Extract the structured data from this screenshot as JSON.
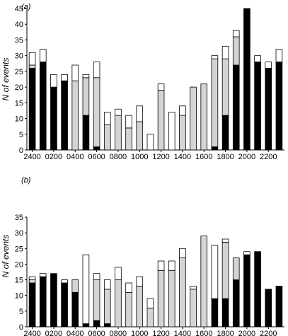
{
  "chart_data": [
    {
      "type": "bar",
      "stacked": true,
      "panel_label": "(a)",
      "ylabel": "N of events",
      "ylim": [
        0,
        45
      ],
      "yticks": [
        0,
        5,
        10,
        15,
        20,
        25,
        30,
        35,
        40,
        45
      ],
      "xtick_labels": [
        "2400",
        "0200",
        "0400",
        "0600",
        "0800",
        "1000",
        "1200",
        "1400",
        "1600",
        "1800",
        "2000",
        "2200"
      ],
      "colors": {
        "black": "#000000",
        "gray": "#d4d4d4",
        "white": "#ffffff"
      },
      "segments_order": [
        "black",
        "gray",
        "white"
      ],
      "bars": [
        {
          "black": 26,
          "gray": 1,
          "white": 4
        },
        {
          "black": 28,
          "gray": 0,
          "white": 4
        },
        {
          "black": 20,
          "gray": 0,
          "white": 4
        },
        {
          "black": 22,
          "gray": 0,
          "white": 2
        },
        {
          "black": 0,
          "gray": 22,
          "white": 5
        },
        {
          "black": 11,
          "gray": 12,
          "white": 1
        },
        {
          "black": 1,
          "gray": 22,
          "white": 5
        },
        {
          "black": 0,
          "gray": 8,
          "white": 4
        },
        {
          "black": 0,
          "gray": 11,
          "white": 2
        },
        {
          "black": 0,
          "gray": 7,
          "white": 4
        },
        {
          "black": 0,
          "gray": 9,
          "white": 5
        },
        {
          "black": 0,
          "gray": 0,
          "white": 5
        },
        {
          "black": 0,
          "gray": 19,
          "white": 2
        },
        {
          "black": 0,
          "gray": 0,
          "white": 12
        },
        {
          "black": 0,
          "gray": 11,
          "white": 3
        },
        {
          "black": 0,
          "gray": 20,
          "white": 0
        },
        {
          "black": 0,
          "gray": 21,
          "white": 0
        },
        {
          "black": 1,
          "gray": 28,
          "white": 1
        },
        {
          "black": 11,
          "gray": 18,
          "white": 4
        },
        {
          "black": 27,
          "gray": 9,
          "white": 2
        },
        {
          "black": 45,
          "gray": 0,
          "white": 0
        },
        {
          "black": 28,
          "gray": 0,
          "white": 2
        },
        {
          "black": 26,
          "gray": 0,
          "white": 2
        },
        {
          "black": 28,
          "gray": 0,
          "white": 4
        }
      ]
    },
    {
      "type": "bar",
      "stacked": true,
      "panel_label": "(b)",
      "ylabel": "N of events",
      "ylim": [
        0,
        35
      ],
      "yticks": [
        0,
        5,
        10,
        15,
        20,
        25,
        30,
        35
      ],
      "xtick_labels": [
        "2400",
        "0200",
        "0400",
        "0600",
        "0800",
        "1000",
        "1200",
        "1400",
        "1600",
        "1800",
        "2000",
        "2200"
      ],
      "colors": {
        "black": "#000000",
        "gray": "#d4d4d4",
        "white": "#ffffff"
      },
      "segments_order": [
        "black",
        "gray",
        "white"
      ],
      "bars": [
        {
          "black": 14,
          "gray": 1,
          "white": 1
        },
        {
          "black": 16,
          "gray": 0,
          "white": 1
        },
        {
          "black": 17,
          "gray": 0,
          "white": 0
        },
        {
          "black": 14,
          "gray": 0,
          "white": 1
        },
        {
          "black": 11,
          "gray": 4,
          "white": 0
        },
        {
          "black": 1,
          "gray": 0,
          "white": 22
        },
        {
          "black": 2,
          "gray": 13,
          "white": 2
        },
        {
          "black": 1,
          "gray": 11,
          "white": 3
        },
        {
          "black": 0,
          "gray": 15,
          "white": 4
        },
        {
          "black": 0,
          "gray": 11,
          "white": 3
        },
        {
          "black": 0,
          "gray": 13,
          "white": 3
        },
        {
          "black": 0,
          "gray": 6,
          "white": 3
        },
        {
          "black": 0,
          "gray": 18,
          "white": 3
        },
        {
          "black": 0,
          "gray": 18,
          "white": 3
        },
        {
          "black": 0,
          "gray": 22,
          "white": 3
        },
        {
          "black": 0,
          "gray": 12,
          "white": 1
        },
        {
          "black": 0,
          "gray": 29,
          "white": 0
        },
        {
          "black": 9,
          "gray": 0,
          "white": 17
        },
        {
          "black": 9,
          "gray": 18,
          "white": 1
        },
        {
          "black": 15,
          "gray": 7,
          "white": 0
        },
        {
          "black": 23,
          "gray": 0,
          "white": 1
        },
        {
          "black": 24,
          "gray": 0,
          "white": 0
        },
        {
          "black": 12,
          "gray": 0,
          "white": 0
        },
        {
          "black": 13,
          "gray": 0,
          "white": 0
        }
      ]
    }
  ]
}
